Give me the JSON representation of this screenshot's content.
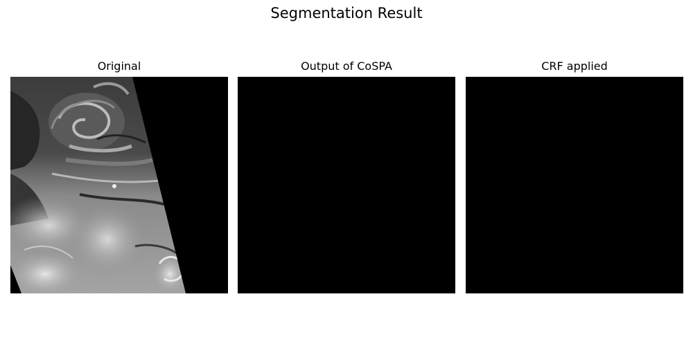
{
  "figure": {
    "title": "Segmentation Result",
    "panels": [
      {
        "title": "Original"
      },
      {
        "title": "Output of CoSPA"
      },
      {
        "title": "CRF applied"
      }
    ]
  }
}
